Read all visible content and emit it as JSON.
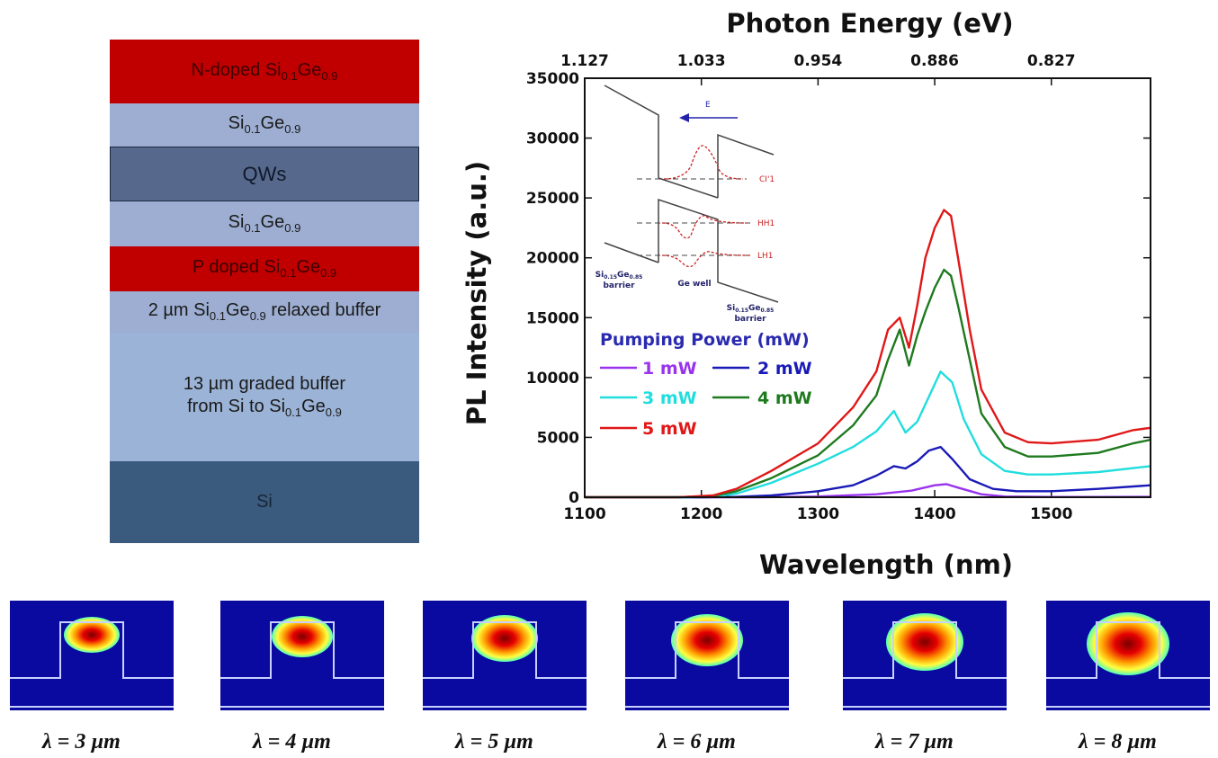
{
  "layer_stack": {
    "layers": [
      {
        "pre": "N-doped Si",
        "sub1": "0.1",
        "mid": "Ge",
        "sub2": "0.9",
        "post": ""
      },
      {
        "pre": "Si",
        "sub1": "0.1",
        "mid": "Ge",
        "sub2": "0.9",
        "post": ""
      },
      {
        "pre": "QWs",
        "sub1": "",
        "mid": "",
        "sub2": "",
        "post": ""
      },
      {
        "pre": "Si",
        "sub1": "0.1",
        "mid": "Ge",
        "sub2": "0.9",
        "post": ""
      },
      {
        "pre": "P doped Si",
        "sub1": "0.1",
        "mid": "Ge",
        "sub2": "0.9",
        "post": ""
      },
      {
        "pre": "2 µm Si",
        "sub1": "0.1",
        "mid": "Ge",
        "sub2": "0.9",
        "post": " relaxed buffer"
      },
      {
        "line1": "13 µm graded buffer",
        "pre": "from Si to Si",
        "sub1": "0.1",
        "mid": "Ge",
        "sub2": "0.9",
        "post": ""
      },
      {
        "pre": "Si",
        "sub1": "",
        "mid": "",
        "sub2": "",
        "post": ""
      }
    ]
  },
  "chart_data": {
    "type": "line",
    "xlabel": "Wavelength (nm)",
    "ylabel": "PL Intensity (a.u.)",
    "top_axis_label": "Photon Energy (eV)",
    "xlim": [
      1100,
      1585
    ],
    "ylim": [
      0,
      35000
    ],
    "x_ticks": [
      1100,
      1200,
      1300,
      1400,
      1500
    ],
    "y_ticks": [
      0,
      5000,
      10000,
      15000,
      20000,
      25000,
      30000,
      35000
    ],
    "top_ticks": [
      {
        "label": "1.127",
        "wavelength": 1100
      },
      {
        "label": "1.033",
        "wavelength": 1200
      },
      {
        "label": "0.954",
        "wavelength": 1300
      },
      {
        "label": "0.886",
        "wavelength": 1400
      },
      {
        "label": "0.827",
        "wavelength": 1500
      }
    ],
    "legend_title": "Pumping Power (mW)",
    "legend_placement": "center-left",
    "series": [
      {
        "name": "1 mW",
        "color": "#9933ee",
        "x": [
          1100,
          1200,
          1250,
          1300,
          1350,
          1380,
          1400,
          1410,
          1420,
          1440,
          1460,
          1500,
          1540,
          1585
        ],
        "values": [
          0,
          0,
          0,
          60,
          250,
          550,
          1000,
          1100,
          800,
          250,
          60,
          20,
          20,
          30
        ]
      },
      {
        "name": "2 mW",
        "color": "#1a1ab8",
        "x": [
          1100,
          1200,
          1230,
          1260,
          1300,
          1330,
          1350,
          1365,
          1375,
          1385,
          1395,
          1405,
          1415,
          1430,
          1450,
          1470,
          1500,
          1540,
          1585
        ],
        "values": [
          0,
          0,
          30,
          150,
          500,
          1000,
          1800,
          2600,
          2400,
          3000,
          3900,
          4200,
          3200,
          1500,
          700,
          500,
          500,
          700,
          1000
        ]
      },
      {
        "name": "3 mW",
        "color": "#22dddd",
        "x": [
          1100,
          1190,
          1210,
          1230,
          1260,
          1300,
          1330,
          1350,
          1365,
          1375,
          1385,
          1395,
          1405,
          1415,
          1425,
          1440,
          1460,
          1480,
          1500,
          1540,
          1585
        ],
        "values": [
          0,
          0,
          50,
          300,
          1200,
          2800,
          4200,
          5500,
          7200,
          5400,
          6300,
          8400,
          10500,
          9600,
          6500,
          3600,
          2200,
          1900,
          1900,
          2100,
          2600
        ]
      },
      {
        "name": "4 mW",
        "color": "#1e7a1e",
        "x": [
          1100,
          1180,
          1210,
          1230,
          1260,
          1300,
          1330,
          1350,
          1360,
          1370,
          1378,
          1385,
          1392,
          1400,
          1408,
          1414,
          1420,
          1430,
          1440,
          1460,
          1480,
          1500,
          1540,
          1570,
          1585
        ],
        "values": [
          0,
          0,
          100,
          500,
          1600,
          3500,
          6000,
          8500,
          11500,
          14000,
          11000,
          13500,
          15500,
          17500,
          19000,
          18500,
          16000,
          11500,
          7000,
          4200,
          3400,
          3400,
          3700,
          4500,
          4800
        ]
      },
      {
        "name": "5 mW",
        "color": "#e01818",
        "x": [
          1100,
          1180,
          1210,
          1230,
          1260,
          1300,
          1330,
          1350,
          1360,
          1370,
          1378,
          1385,
          1392,
          1400,
          1408,
          1414,
          1420,
          1430,
          1440,
          1460,
          1480,
          1500,
          1540,
          1570,
          1585
        ],
        "values": [
          0,
          0,
          150,
          700,
          2200,
          4500,
          7500,
          10500,
          14000,
          15000,
          12500,
          16000,
          20000,
          22500,
          24000,
          23500,
          20000,
          14000,
          9000,
          5400,
          4600,
          4500,
          4800,
          5600,
          5800
        ]
      }
    ]
  },
  "inset": {
    "field_label": "E",
    "cb_label": "CI'1",
    "hh_label": "HH1",
    "lh_label": "LH1",
    "barrier_left_pre": "Si",
    "barrier_left_sub1": "0.15",
    "barrier_left_mid": "Ge",
    "barrier_left_sub2": "0.85",
    "barrier_left_word": "barrier",
    "well_label": "Ge well",
    "barrier_right_pre": "Si",
    "barrier_right_sub1": "0.15",
    "barrier_right_mid": "Ge",
    "barrier_right_sub2": "0.85",
    "barrier_right_word": "barrier"
  },
  "modes": [
    {
      "label": "λ = 3 µm"
    },
    {
      "label": "λ = 4 µm"
    },
    {
      "label": "λ = 5 µm"
    },
    {
      "label": "λ = 6 µm"
    },
    {
      "label": "λ = 7 µm"
    },
    {
      "label": "λ = 8 µm"
    }
  ]
}
